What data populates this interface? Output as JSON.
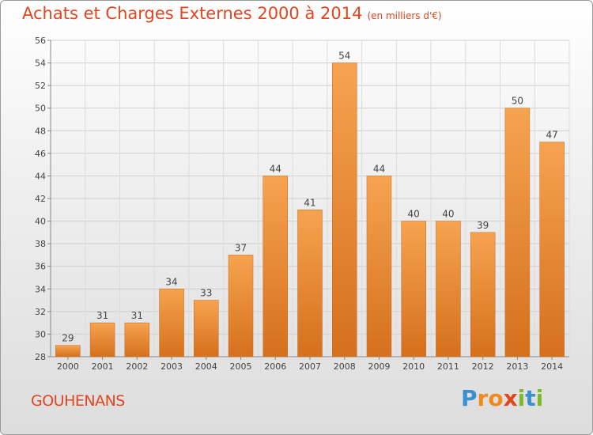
{
  "header": {
    "title": "Achats et Charges Externes 2000 à 2014",
    "unit": "(en milliers d'€)"
  },
  "commune": "GOUHENANS",
  "logo": {
    "text": "Proxiti",
    "letters": [
      {
        "ch": "P",
        "color": "#3a8fd0"
      },
      {
        "ch": "r",
        "color": "#f08a1c"
      },
      {
        "ch": "o",
        "color": "#f08a1c"
      },
      {
        "ch": "x",
        "color": "#e0461f"
      },
      {
        "ch": "i",
        "color": "#7cb92c"
      },
      {
        "ch": "t",
        "color": "#3a8fd0"
      },
      {
        "ch": "i",
        "color": "#7cb92c"
      }
    ]
  },
  "colors": {
    "bar_light": "#f6a350",
    "bar_dark": "#d5701c",
    "title": "#e0461f"
  },
  "chart_data": {
    "type": "bar",
    "categories": [
      "2000",
      "2001",
      "2002",
      "2003",
      "2004",
      "2005",
      "2006",
      "2007",
      "2008",
      "2009",
      "2010",
      "2011",
      "2012",
      "2013",
      "2014"
    ],
    "values": [
      29,
      31,
      31,
      34,
      33,
      37,
      44,
      41,
      54,
      44,
      40,
      40,
      39,
      50,
      47
    ],
    "ylim": [
      28,
      56
    ],
    "yticks": [
      28,
      30,
      32,
      34,
      36,
      38,
      40,
      42,
      44,
      46,
      48,
      50,
      52,
      54,
      56
    ],
    "grid": true,
    "data_labels": true
  }
}
